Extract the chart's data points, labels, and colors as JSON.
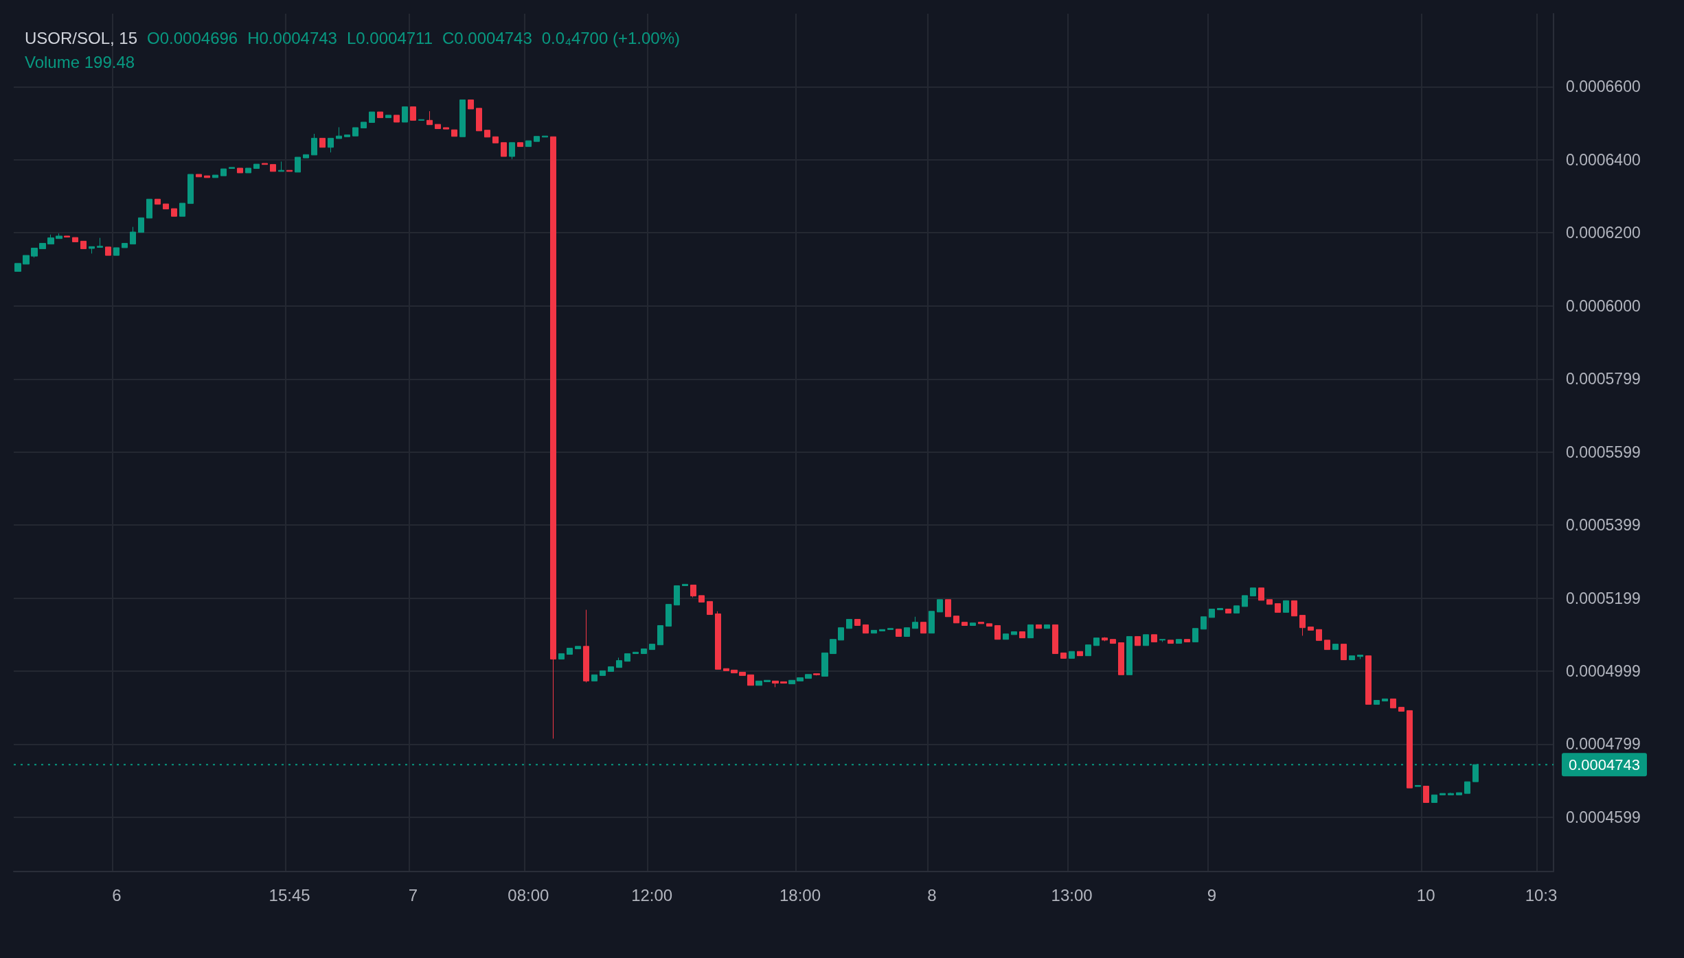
{
  "chart_data": {
    "type": "candlestick",
    "title": "USOR/SOL, 15",
    "annotations": [
      "O0.0004696",
      "H0.0004743",
      "L0.0004711",
      "C0.0004743",
      "0.0₄4700 (+1.00%)",
      "Volume 199.48"
    ],
    "grid": true,
    "ylim": [
      0.000445,
      0.00068
    ],
    "yticks": [
      0.0004599,
      0.0004799,
      0.0004999,
      0.0005199,
      0.0005399,
      0.0005599,
      0.0005799,
      {
        "value": 0.0006,
        "label": "0.0006000"
      },
      {
        "value": 0.00062,
        "label": "0.0006200"
      },
      {
        "value": 0.00064,
        "label": "0.0006400"
      },
      {
        "value": 0.00066,
        "label": "0.0006600"
      }
    ],
    "ref_lines": [
      {
        "axis": "y",
        "value": 0.0004743,
        "label": "0.0004743",
        "color": "#089981",
        "line_style": "dotted"
      }
    ],
    "categories": [
      null,
      null,
      null,
      null,
      null,
      null,
      null,
      null,
      null,
      null,
      null,
      null,
      "6",
      null,
      null,
      null,
      null,
      null,
      null,
      null,
      null,
      null,
      null,
      null,
      null,
      null,
      null,
      null,
      null,
      null,
      null,
      null,
      null,
      "15:45",
      null,
      null,
      null,
      null,
      null,
      null,
      null,
      null,
      null,
      null,
      null,
      null,
      null,
      null,
      "7",
      null,
      null,
      null,
      null,
      null,
      null,
      null,
      null,
      null,
      null,
      null,
      null,
      null,
      "08:00",
      null,
      null,
      null,
      null,
      null,
      null,
      null,
      null,
      null,
      null,
      null,
      null,
      null,
      null,
      "12:00",
      null,
      null,
      null,
      null,
      null,
      null,
      null,
      null,
      null,
      null,
      null,
      null,
      null,
      null,
      null,
      null,
      null,
      "18:00",
      null,
      null,
      null,
      null,
      null,
      null,
      null,
      null,
      null,
      null,
      null,
      null,
      null,
      null,
      null,
      "8",
      null,
      null,
      null,
      null,
      null,
      null,
      null,
      null,
      null,
      null,
      null,
      null,
      null,
      null,
      null,
      null,
      "13:00",
      null,
      null,
      null,
      null,
      null,
      null,
      null,
      null,
      null,
      null,
      null,
      null,
      null,
      null,
      null,
      null,
      "9",
      null,
      null,
      null,
      null,
      null,
      null,
      null,
      null,
      null,
      null,
      null,
      null,
      null,
      null,
      null,
      null,
      null,
      null,
      null,
      null,
      null,
      null,
      null,
      null,
      null,
      "10",
      null,
      null,
      null,
      null,
      null,
      null,
      null,
      null,
      null,
      null,
      null,
      null,
      null,
      "10:3",
      null
    ],
    "ohlc": [
      [
        0.0006094,
        0.0006116,
        0.0006094,
        0.0006116
      ],
      [
        0.0006114,
        0.0006138,
        0.0006114,
        0.0006138
      ],
      [
        0.0006136,
        0.0006158,
        0.0006132,
        0.0006158
      ],
      [
        0.0006156,
        0.0006171,
        0.0006156,
        0.0006171
      ],
      [
        0.0006169,
        0.0006195,
        0.0006169,
        0.0006186
      ],
      [
        0.0006184,
        0.0006198,
        0.0006184,
        0.0006191
      ],
      [
        0.0006191,
        0.0006191,
        0.0006188,
        0.0006188
      ],
      [
        0.0006187,
        0.0006187,
        0.0006175,
        0.0006175
      ],
      [
        0.0006177,
        0.0006177,
        0.0006156,
        0.0006156
      ],
      [
        0.0006157,
        0.0006162,
        0.0006143,
        0.0006162
      ],
      [
        0.000616,
        0.0006186,
        0.000616,
        0.0006163
      ],
      [
        0.0006161,
        0.0006161,
        0.0006138,
        0.0006138
      ],
      [
        0.0006138,
        0.0006159,
        0.0006138,
        0.0006159
      ],
      [
        0.0006159,
        0.0006171,
        0.0006159,
        0.0006171
      ],
      [
        0.0006169,
        0.0006216,
        0.0006169,
        0.0006202
      ],
      [
        0.0006201,
        0.0006241,
        0.0006201,
        0.0006241
      ],
      [
        0.000624,
        0.0006292,
        0.000624,
        0.0006292
      ],
      [
        0.0006292,
        0.0006292,
        0.0006278,
        0.0006278
      ],
      [
        0.0006279,
        0.0006279,
        0.0006265,
        0.0006265
      ],
      [
        0.0006266,
        0.0006266,
        0.0006245,
        0.0006245
      ],
      [
        0.0006245,
        0.0006281,
        0.0006245,
        0.0006281
      ],
      [
        0.000628,
        0.000636,
        0.000628,
        0.000636
      ],
      [
        0.000636,
        0.000636,
        0.0006353,
        0.0006353
      ],
      [
        0.0006356,
        0.0006356,
        0.0006351,
        0.0006351
      ],
      [
        0.0006351,
        0.0006358,
        0.0006351,
        0.0006358
      ],
      [
        0.0006356,
        0.0006375,
        0.0006356,
        0.0006375
      ],
      [
        0.0006376,
        0.0006379,
        0.0006376,
        0.0006379
      ],
      [
        0.0006377,
        0.0006377,
        0.0006364,
        0.0006364
      ],
      [
        0.0006364,
        0.0006377,
        0.0006364,
        0.0006377
      ],
      [
        0.0006376,
        0.0006388,
        0.0006376,
        0.0006388
      ],
      [
        0.000639,
        0.000639,
        0.0006387,
        0.0006387
      ],
      [
        0.0006387,
        0.0006387,
        0.0006368,
        0.0006368
      ],
      [
        0.0006368,
        0.0006395,
        0.0006368,
        0.0006371
      ],
      [
        0.0006371,
        0.0006371,
        0.0006368,
        0.0006368
      ],
      [
        0.0006366,
        0.0006407,
        0.0006366,
        0.0006407
      ],
      [
        0.0006405,
        0.0006414,
        0.0006405,
        0.0006414
      ],
      [
        0.0006413,
        0.0006471,
        0.0006413,
        0.0006459
      ],
      [
        0.0006459,
        0.0006459,
        0.0006434,
        0.0006434
      ],
      [
        0.0006434,
        0.0006459,
        0.000642,
        0.0006459
      ],
      [
        0.0006458,
        0.0006489,
        0.0006458,
        0.0006465
      ],
      [
        0.0006463,
        0.0006468,
        0.0006463,
        0.0006468
      ],
      [
        0.0006465,
        0.0006488,
        0.0006465,
        0.0006488
      ],
      [
        0.0006487,
        0.0006503,
        0.0006487,
        0.0006503
      ],
      [
        0.0006502,
        0.0006531,
        0.0006502,
        0.0006531
      ],
      [
        0.0006531,
        0.0006531,
        0.0006515,
        0.0006515
      ],
      [
        0.0006515,
        0.0006522,
        0.0006515,
        0.0006522
      ],
      [
        0.0006522,
        0.0006522,
        0.0006503,
        0.0006503
      ],
      [
        0.0006503,
        0.0006545,
        0.0006503,
        0.0006545
      ],
      [
        0.0006545,
        0.0006545,
        0.0006508,
        0.0006508
      ],
      [
        0.0006508,
        0.000651,
        0.0006508,
        0.000651
      ],
      [
        0.0006508,
        0.0006533,
        0.0006496,
        0.0006496
      ],
      [
        0.0006497,
        0.0006497,
        0.0006485,
        0.0006485
      ],
      [
        0.0006488,
        0.0006488,
        0.0006484,
        0.0006484
      ],
      [
        0.0006482,
        0.0006482,
        0.0006464,
        0.0006464
      ],
      [
        0.0006463,
        0.0006564,
        0.0006463,
        0.0006564
      ],
      [
        0.0006564,
        0.0006564,
        0.0006539,
        0.0006539
      ],
      [
        0.0006541,
        0.0006541,
        0.0006479,
        0.0006479
      ],
      [
        0.0006481,
        0.0006481,
        0.0006462,
        0.0006462
      ],
      [
        0.0006463,
        0.0006463,
        0.0006446,
        0.0006446
      ],
      [
        0.0006447,
        0.0006447,
        0.0006409,
        0.0006409
      ],
      [
        0.0006409,
        0.0006447,
        0.0006402,
        0.0006447
      ],
      [
        0.0006447,
        0.0006447,
        0.0006436,
        0.0006436
      ],
      [
        0.0006436,
        0.0006452,
        0.0006436,
        0.0006452
      ],
      [
        0.000645,
        0.0006464,
        0.000645,
        0.0006464
      ],
      [
        0.0006462,
        0.0006465,
        0.0006462,
        0.0006465
      ],
      [
        0.0006463,
        0.0006463,
        0.0004814,
        0.0005032
      ],
      [
        0.0005032,
        0.0005047,
        0.0005032,
        0.0005047
      ],
      [
        0.0005045,
        0.0005062,
        0.0005045,
        0.0005062
      ],
      [
        0.000506,
        0.0005067,
        0.000506,
        0.0005067
      ],
      [
        0.0005067,
        0.0005167,
        0.0004968,
        0.0004972
      ],
      [
        0.0004972,
        0.0004989,
        0.0004972,
        0.0004989
      ],
      [
        0.0004987,
        0.0005,
        0.0004987,
        0.0005
      ],
      [
        0.0004998,
        0.0005011,
        0.0004998,
        0.0005011
      ],
      [
        0.0005009,
        0.0005036,
        0.0005009,
        0.0005028
      ],
      [
        0.0005026,
        0.0005047,
        0.0005026,
        0.0005047
      ],
      [
        0.0005047,
        0.0005051,
        0.0005047,
        0.0005051
      ],
      [
        0.0005047,
        0.000506,
        0.0005047,
        0.000506
      ],
      [
        0.0005058,
        0.0005073,
        0.0005058,
        0.0005073
      ],
      [
        0.0005071,
        0.0005124,
        0.0005071,
        0.0005124
      ],
      [
        0.0005122,
        0.0005182,
        0.0005122,
        0.0005182
      ],
      [
        0.000518,
        0.0005233,
        0.000518,
        0.0005233
      ],
      [
        0.0005233,
        0.0005237,
        0.0005233,
        0.0005237
      ],
      [
        0.0005235,
        0.0005235,
        0.0005201,
        0.0005205
      ],
      [
        0.0005206,
        0.0005206,
        0.0005188,
        0.0005188
      ],
      [
        0.000519,
        0.000519,
        0.0005154,
        0.0005154
      ],
      [
        0.0005156,
        0.0005163,
        0.0005004,
        0.0005004
      ],
      [
        0.0005006,
        0.0005006,
        0.0005,
        0.0005
      ],
      [
        0.0005002,
        0.0005002,
        0.0004994,
        0.0004994
      ],
      [
        0.0004996,
        0.0004996,
        0.0004987,
        0.0004987
      ],
      [
        0.0004989,
        0.0004989,
        0.000496,
        0.000496
      ],
      [
        0.000496,
        0.0004972,
        0.000496,
        0.0004972
      ],
      [
        0.000497,
        0.0004974,
        0.000497,
        0.0004974
      ],
      [
        0.0004972,
        0.0004972,
        0.0004955,
        0.0004966
      ],
      [
        0.000497,
        0.000497,
        0.0004966,
        0.0004966
      ],
      [
        0.0004964,
        0.0004974,
        0.0004964,
        0.0004974
      ],
      [
        0.0004972,
        0.0004981,
        0.0004972,
        0.0004981
      ],
      [
        0.0004979,
        0.000499,
        0.0004979,
        0.000499
      ],
      [
        0.0004992,
        0.0004992,
        0.0004987,
        0.0004989
      ],
      [
        0.0004985,
        0.0005049,
        0.0004985,
        0.0005049
      ],
      [
        0.0005047,
        0.0005086,
        0.0005047,
        0.0005086
      ],
      [
        0.0005084,
        0.0005118,
        0.0005084,
        0.0005118
      ],
      [
        0.0005116,
        0.0005141,
        0.0005116,
        0.0005141
      ],
      [
        0.0005141,
        0.0005141,
        0.0005124,
        0.0005124
      ],
      [
        0.0005126,
        0.0005126,
        0.0005103,
        0.0005103
      ],
      [
        0.0005103,
        0.0005111,
        0.0005103,
        0.0005111
      ],
      [
        0.0005109,
        0.0005113,
        0.0005109,
        0.0005113
      ],
      [
        0.0005113,
        0.0005116,
        0.0005113,
        0.0005116
      ],
      [
        0.0005114,
        0.0005114,
        0.0005094,
        0.0005094
      ],
      [
        0.0005094,
        0.0005118,
        0.0005094,
        0.0005118
      ],
      [
        0.0005116,
        0.0005148,
        0.0005116,
        0.0005133
      ],
      [
        0.0005133,
        0.0005133,
        0.0005103,
        0.0005103
      ],
      [
        0.0005103,
        0.0005163,
        0.0005103,
        0.0005163
      ],
      [
        0.0005161,
        0.0005195,
        0.0005161,
        0.0005195
      ],
      [
        0.0005195,
        0.0005195,
        0.0005148,
        0.0005148
      ],
      [
        0.000515,
        0.000515,
        0.0005131,
        0.0005131
      ],
      [
        0.0005133,
        0.0005133,
        0.0005124,
        0.0005124
      ],
      [
        0.0005124,
        0.0005131,
        0.0005124,
        0.0005131
      ],
      [
        0.0005133,
        0.0005133,
        0.0005129,
        0.0005129
      ],
      [
        0.0005129,
        0.0005129,
        0.0005122,
        0.0005122
      ],
      [
        0.0005124,
        0.0005124,
        0.0005086,
        0.0005086
      ],
      [
        0.0005086,
        0.0005101,
        0.0005086,
        0.0005101
      ],
      [
        0.0005099,
        0.0005107,
        0.0005099,
        0.0005107
      ],
      [
        0.0005107,
        0.0005107,
        0.000509,
        0.000509
      ],
      [
        0.000509,
        0.0005126,
        0.000509,
        0.0005126
      ],
      [
        0.0005126,
        0.0005126,
        0.0005116,
        0.0005116
      ],
      [
        0.0005116,
        0.0005126,
        0.0005116,
        0.0005126
      ],
      [
        0.0005126,
        0.0005126,
        0.0005047,
        0.0005047
      ],
      [
        0.0005049,
        0.0005049,
        0.0005034,
        0.0005034
      ],
      [
        0.0005034,
        0.0005053,
        0.0005034,
        0.0005053
      ],
      [
        0.0005053,
        0.0005053,
        0.0005041,
        0.0005041
      ],
      [
        0.0005041,
        0.0005071,
        0.0005041,
        0.0005071
      ],
      [
        0.0005069,
        0.000509,
        0.0005069,
        0.000509
      ],
      [
        0.000509,
        0.0005092,
        0.0005081,
        0.0005084
      ],
      [
        0.0005086,
        0.0005086,
        0.0005075,
        0.0005075
      ],
      [
        0.0005077,
        0.0005077,
        0.0004989,
        0.0004989
      ],
      [
        0.0004989,
        0.0005094,
        0.0004989,
        0.0005094
      ],
      [
        0.0005094,
        0.0005094,
        0.0005069,
        0.0005069
      ],
      [
        0.0005069,
        0.0005099,
        0.0005069,
        0.0005099
      ],
      [
        0.0005099,
        0.0005099,
        0.0005079,
        0.0005079
      ],
      [
        0.0005084,
        0.0005086,
        0.0005079,
        0.0005086
      ],
      [
        0.0005084,
        0.0005084,
        0.0005075,
        0.0005075
      ],
      [
        0.0005075,
        0.0005086,
        0.0005075,
        0.0005086
      ],
      [
        0.0005086,
        0.0005086,
        0.0005079,
        0.0005079
      ],
      [
        0.0005079,
        0.0005116,
        0.0005079,
        0.0005116
      ],
      [
        0.0005114,
        0.0005148,
        0.0005114,
        0.0005148
      ],
      [
        0.0005146,
        0.0005169,
        0.0005146,
        0.0005169
      ],
      [
        0.0005167,
        0.0005171,
        0.0005167,
        0.0005171
      ],
      [
        0.0005169,
        0.0005169,
        0.0005158,
        0.0005158
      ],
      [
        0.0005158,
        0.0005178,
        0.0005158,
        0.0005178
      ],
      [
        0.0005176,
        0.0005206,
        0.0005176,
        0.0005206
      ],
      [
        0.0005205,
        0.0005227,
        0.0005205,
        0.0005227
      ],
      [
        0.0005227,
        0.0005227,
        0.0005193,
        0.0005193
      ],
      [
        0.0005195,
        0.0005195,
        0.0005182,
        0.0005182
      ],
      [
        0.0005184,
        0.0005184,
        0.000516,
        0.000516
      ],
      [
        0.000516,
        0.0005193,
        0.000516,
        0.0005192
      ],
      [
        0.0005192,
        0.0005192,
        0.000515,
        0.000515
      ],
      [
        0.0005152,
        0.0005152,
        0.0005096,
        0.0005118
      ],
      [
        0.000512,
        0.000512,
        0.0005111,
        0.0005111
      ],
      [
        0.0005113,
        0.0005113,
        0.0005083,
        0.0005083
      ],
      [
        0.0005084,
        0.0005084,
        0.0005058,
        0.0005058
      ],
      [
        0.0005058,
        0.0005073,
        0.0005058,
        0.0005073
      ],
      [
        0.0005073,
        0.0005073,
        0.000503,
        0.000503
      ],
      [
        0.000503,
        0.0005041,
        0.000503,
        0.0005041
      ],
      [
        0.0005039,
        0.0005043,
        0.0005032,
        0.0005043
      ],
      [
        0.0005041,
        0.0005041,
        0.0004908,
        0.0004908
      ],
      [
        0.0004908,
        0.0004919,
        0.0004908,
        0.0004919
      ],
      [
        0.0004917,
        0.0004923,
        0.0004917,
        0.0004923
      ],
      [
        0.0004923,
        0.0004923,
        0.0004898,
        0.0004898
      ],
      [
        0.00049,
        0.00049,
        0.0004889,
        0.0004889
      ],
      [
        0.0004891,
        0.0004891,
        0.0004679,
        0.0004679
      ],
      [
        0.0004683,
        0.0004686,
        0.0004683,
        0.0004686
      ],
      [
        0.0004684,
        0.0004684,
        0.0004639,
        0.0004639
      ],
      [
        0.0004639,
        0.000466,
        0.0004639,
        0.000466
      ],
      [
        0.000466,
        0.0004664,
        0.000466,
        0.0004664
      ],
      [
        0.000466,
        0.0004666,
        0.000466,
        0.0004664
      ],
      [
        0.000466,
        0.0004666,
        0.000466,
        0.0004666
      ],
      [
        0.0004664,
        0.0004696,
        0.0004664,
        0.0004696
      ],
      [
        0.0004696,
        0.0004743,
        0.0004696,
        0.0004743
      ],
      null,
      null,
      null,
      null,
      null,
      null,
      null,
      null,
      null
    ],
    "colors": [
      "#089981",
      "#089981",
      "#089981",
      "#089981",
      "#089981",
      "#089981",
      "#f23645",
      "#f23645",
      "#f23645",
      "#089981",
      "#089981",
      "#f23645",
      "#089981",
      "#089981",
      "#089981",
      "#089981",
      "#089981",
      "#f23645",
      "#f23645",
      "#f23645",
      "#089981",
      "#089981",
      "#f23645",
      "#f23645",
      "#089981",
      "#089981",
      "#089981",
      "#f23645",
      "#089981",
      "#089981",
      "#f23645",
      "#f23645",
      "#089981",
      "#f23645",
      "#089981",
      "#089981",
      "#089981",
      "#f23645",
      "#089981",
      "#089981",
      "#089981",
      "#089981",
      "#089981",
      "#089981",
      "#f23645",
      "#089981",
      "#f23645",
      "#089981",
      "#f23645",
      "#089981",
      "#f23645",
      "#f23645",
      "#f23645",
      "#f23645",
      "#089981",
      "#f23645",
      "#f23645",
      "#f23645",
      "#f23645",
      "#f23645",
      "#089981",
      "#f23645",
      "#089981",
      "#089981",
      "#089981",
      "#f23645",
      "#089981",
      "#089981",
      "#089981",
      "#f23645",
      "#089981",
      "#089981",
      "#089981",
      "#089981",
      "#089981",
      "#089981",
      "#089981",
      "#089981",
      "#089981",
      "#089981",
      "#089981",
      "#089981",
      "#f23645",
      "#f23645",
      "#f23645",
      "#f23645",
      "#f23645",
      "#f23645",
      "#f23645",
      "#f23645",
      "#089981",
      "#089981",
      "#f23645",
      "#f23645",
      "#089981",
      "#089981",
      "#089981",
      "#f23645",
      "#089981",
      "#089981",
      "#089981",
      "#089981",
      "#f23645",
      "#f23645",
      "#089981",
      "#089981",
      "#089981",
      "#f23645",
      "#089981",
      "#089981",
      "#f23645",
      "#089981",
      "#089981",
      "#f23645",
      "#f23645",
      "#f23645",
      "#089981",
      "#f23645",
      "#f23645",
      "#f23645",
      "#089981",
      "#089981",
      "#f23645",
      "#089981",
      "#f23645",
      "#089981",
      "#f23645",
      "#f23645",
      "#089981",
      "#f23645",
      "#089981",
      "#089981",
      "#f23645",
      "#f23645",
      "#f23645",
      "#089981",
      "#f23645",
      "#089981",
      "#f23645",
      "#089981",
      "#f23645",
      "#089981",
      "#f23645",
      "#089981",
      "#089981",
      "#089981",
      "#089981",
      "#f23645",
      "#089981",
      "#089981",
      "#089981",
      "#f23645",
      "#f23645",
      "#f23645",
      "#089981",
      "#f23645",
      "#f23645",
      "#f23645",
      "#f23645",
      "#f23645",
      "#089981",
      "#f23645",
      "#089981",
      "#089981",
      "#f23645",
      "#089981",
      "#089981",
      "#f23645",
      "#f23645",
      "#f23645",
      "#089981",
      "#f23645",
      "#089981",
      "#089981",
      "#089981",
      "#089981",
      "#089981",
      "#089981",
      null,
      null,
      null,
      null,
      null,
      null,
      null,
      null,
      null
    ]
  }
}
